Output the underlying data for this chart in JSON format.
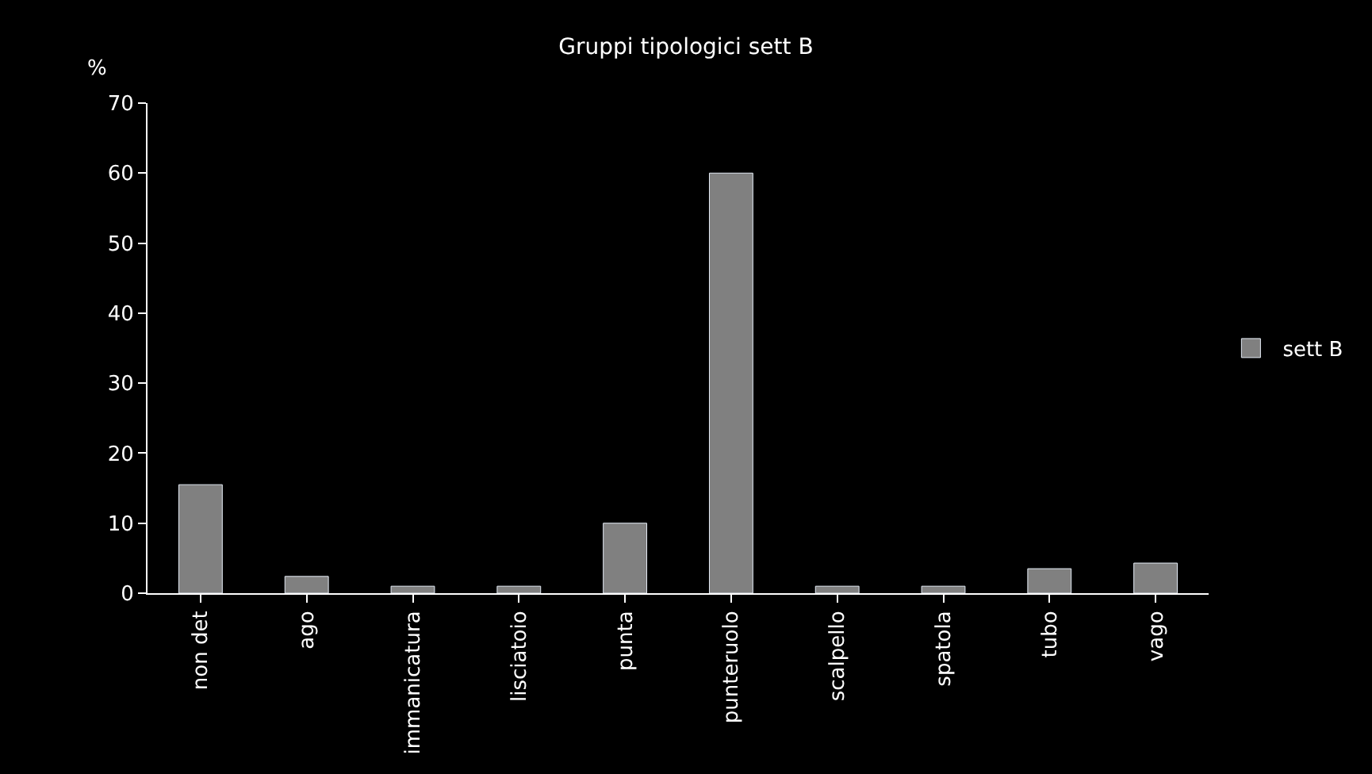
{
  "chart_data": {
    "type": "bar",
    "title": "Gruppi tipologici sett B",
    "ylabel": "%",
    "categories": [
      "non det",
      "ago",
      "immanicatura",
      "lisciatoio",
      "punta",
      "punteruolo",
      "scalpello",
      "spatola",
      "tubo",
      "vago"
    ],
    "series": [
      {
        "name": "sett B",
        "color": "#808080",
        "values": [
          15.5,
          2.4,
          1,
          1,
          10,
          60,
          1,
          1,
          3.5,
          4.3
        ]
      }
    ],
    "ylim": [
      0,
      70
    ],
    "yticks": [
      0,
      10,
      20,
      30,
      40,
      50,
      60,
      70
    ],
    "grid": false,
    "legend": "right"
  }
}
